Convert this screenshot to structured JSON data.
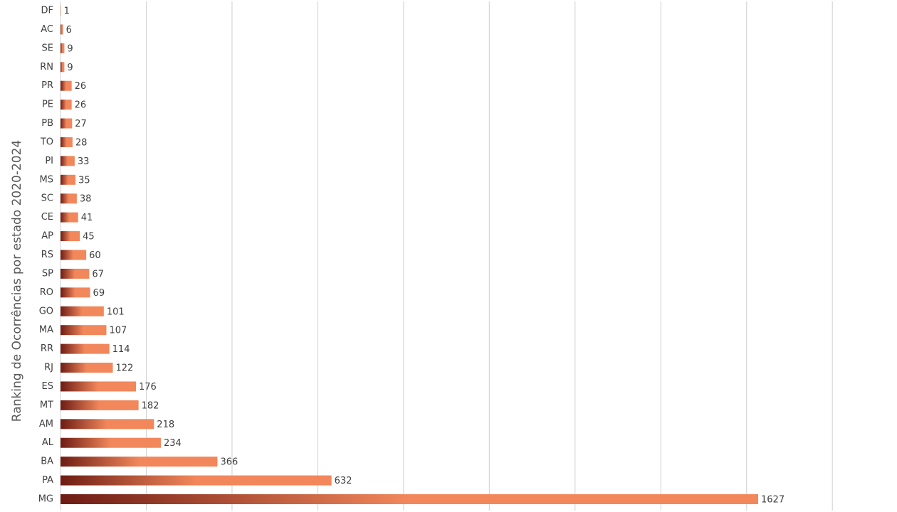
{
  "chart_data": {
    "type": "bar",
    "orientation": "horizontal",
    "y_axis_label": "Ranking de Ocorrências por estado 2020-2024",
    "categories": [
      "DF",
      "AC",
      "SE",
      "RN",
      "PR",
      "PE",
      "PB",
      "TO",
      "PI",
      "MS",
      "SC",
      "CE",
      "AP",
      "RS",
      "SP",
      "RO",
      "GO",
      "MA",
      "RR",
      "RJ",
      "ES",
      "MT",
      "AM",
      "AL",
      "BA",
      "PA",
      "MG"
    ],
    "values": [
      1,
      6,
      9,
      9,
      26,
      26,
      27,
      28,
      33,
      35,
      38,
      41,
      45,
      60,
      67,
      69,
      101,
      107,
      114,
      122,
      176,
      182,
      218,
      234,
      366,
      632,
      1627
    ],
    "color": "#f2875b",
    "color_dark": "#6e1c14",
    "xlim": [
      0,
      1800
    ],
    "xticks": [
      0,
      200,
      400,
      600,
      800,
      1000,
      1200,
      1400,
      1600,
      1800
    ],
    "grid": true
  }
}
